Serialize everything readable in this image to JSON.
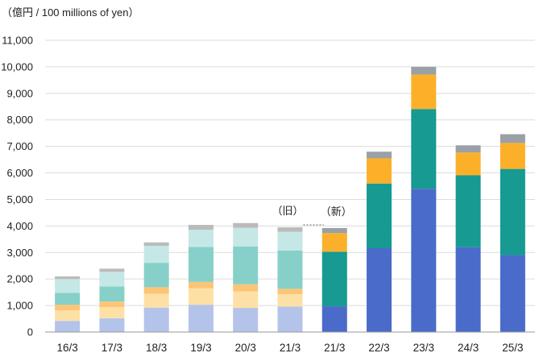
{
  "chart_data": {
    "type": "bar",
    "stacked": true,
    "unit_label": "（億円 / 100 millions of yen）",
    "categories": [
      "16/3",
      "17/3",
      "18/3",
      "19/3",
      "20/3",
      "21/3",
      "21/3",
      "22/3",
      "23/3",
      "24/3",
      "25/3"
    ],
    "ylim": [
      0,
      11000
    ],
    "yticks": [
      "0",
      "1,000",
      "2,000",
      "3,000",
      "4,000",
      "5,000",
      "6,000",
      "7,000",
      "8,000",
      "9,000",
      "10,000",
      "11,000"
    ],
    "grid": true,
    "annotations": {
      "old": "（旧）",
      "new": "（新）"
    },
    "series": [
      {
        "color_old": "#b4c3ea",
        "color_new": "#4a6bc9",
        "values": [
          420,
          520,
          920,
          1030,
          910,
          960,
          970,
          3160,
          5400,
          3200,
          2900
        ]
      },
      {
        "color_old": "#fde0a6",
        "color_new": "#169a92",
        "values": [
          400,
          420,
          520,
          620,
          620,
          470,
          2060,
          2440,
          3010,
          2710,
          3250
        ]
      },
      {
        "color_old": "#fcc575",
        "color_new": "#fcb02a",
        "values": [
          210,
          210,
          250,
          240,
          270,
          200,
          700,
          950,
          1300,
          860,
          980
        ]
      },
      {
        "color_old": "#86d0c9",
        "color_new": null,
        "values": [
          450,
          570,
          920,
          1320,
          1430,
          1440,
          0,
          0,
          0,
          0,
          0
        ]
      },
      {
        "color_old": "#c5e7e6",
        "color_new": null,
        "values": [
          520,
          550,
          640,
          650,
          700,
          710,
          0,
          0,
          0,
          0,
          0
        ]
      },
      {
        "color_old": "#bbbbbb",
        "color_new": "#9aa0a6",
        "values": [
          100,
          120,
          130,
          180,
          180,
          170,
          190,
          250,
          290,
          270,
          330
        ]
      }
    ],
    "old_basis_count": 6
  }
}
